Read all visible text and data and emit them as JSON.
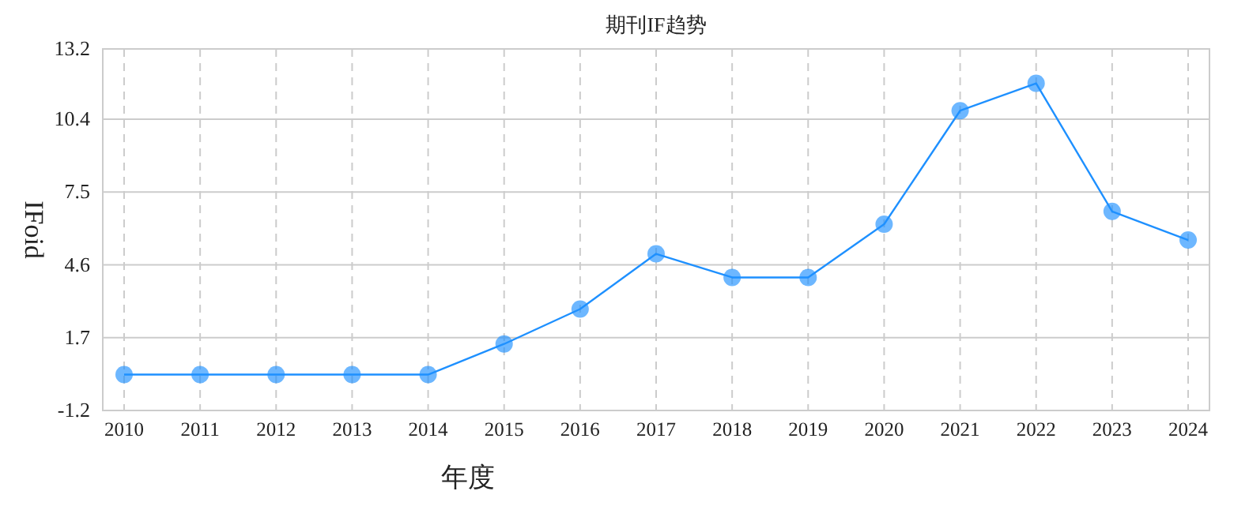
{
  "chart_data": {
    "type": "line",
    "title": "期刊IF趋势",
    "xlabel": "年度",
    "ylabel": "IFoid",
    "categories": [
      "2010",
      "2011",
      "2012",
      "2013",
      "2014",
      "2015",
      "2016",
      "2017",
      "2018",
      "2019",
      "2020",
      "2021",
      "2022",
      "2023",
      "2024"
    ],
    "series": [
      {
        "color": "#1e90ff",
        "values": [
          0.23,
          0.23,
          0.23,
          0.23,
          0.23,
          1.45,
          2.84,
          5.04,
          4.1,
          4.1,
          6.22,
          10.74,
          11.83,
          6.73,
          5.59
        ]
      }
    ],
    "ylim": [
      -1.2,
      13.2
    ],
    "yticks": [
      -1.2,
      1.7,
      4.6,
      7.5,
      10.4,
      13.2
    ],
    "grid": true,
    "marker": "circle"
  }
}
